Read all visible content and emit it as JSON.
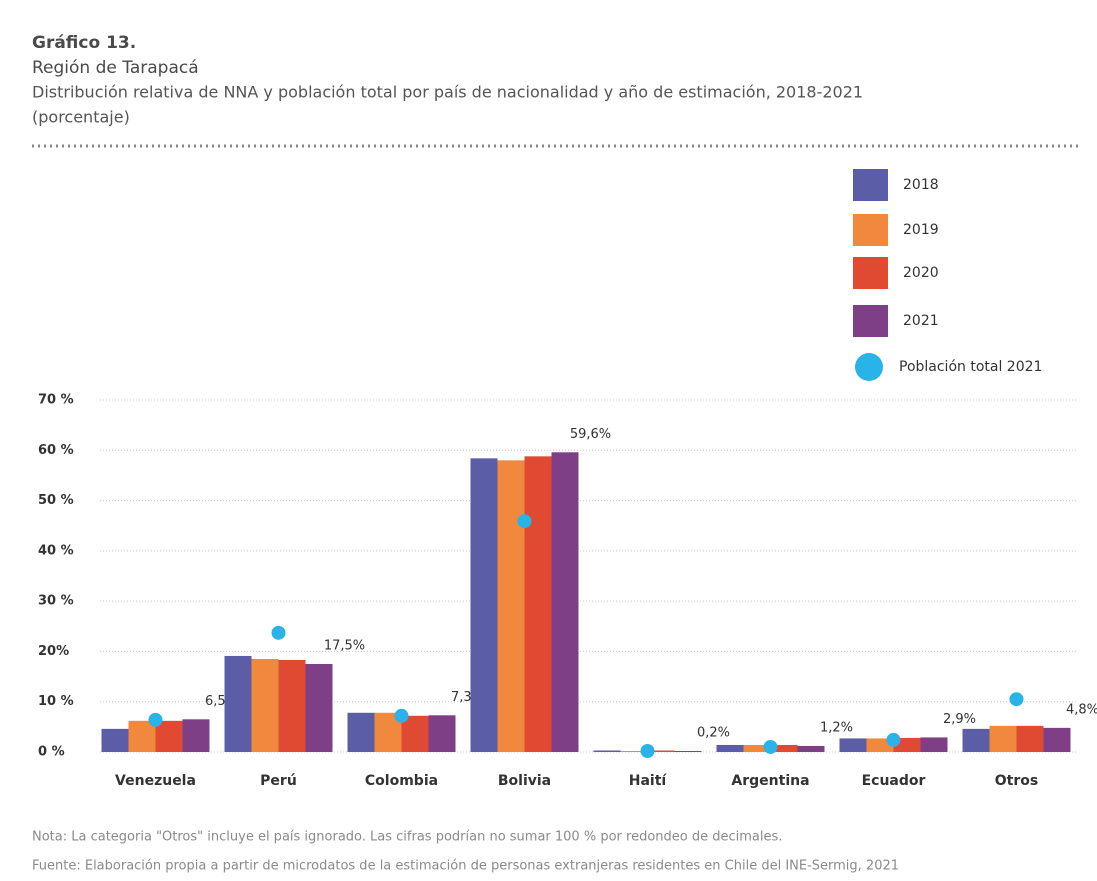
{
  "chart_data": {
    "type": "bar",
    "title": "Gráfico 13.",
    "region": "Región de Tarapacá",
    "subtitle": "Distribución relativa de NNA y población total por país de nacionalidad y año de estimación, 2018-2021",
    "unit_note": "(porcentaje)",
    "categories": [
      "Venezuela",
      "Perú",
      "Colombia",
      "Bolivia",
      "Haití",
      "Argentina",
      "Ecuador",
      "Otros"
    ],
    "series": [
      {
        "name": "2018",
        "color": "#5b5ea6",
        "values": [
          4.6,
          19.1,
          7.8,
          58.4,
          0.3,
          1.4,
          2.7,
          4.6
        ]
      },
      {
        "name": "2019",
        "color": "#f0883e",
        "values": [
          6.2,
          18.5,
          7.8,
          58.0,
          0.2,
          1.4,
          2.7,
          5.2
        ]
      },
      {
        "name": "2020",
        "color": "#e04a33",
        "values": [
          6.2,
          18.3,
          7.2,
          58.8,
          0.3,
          1.4,
          2.8,
          5.2
        ]
      },
      {
        "name": "2021",
        "color": "#7e3f86",
        "values": [
          6.5,
          17.5,
          7.3,
          59.6,
          0.2,
          1.2,
          2.9,
          4.8
        ],
        "value_labels": [
          "6,5%",
          "17,5%",
          "7,3%",
          "59,6%",
          "0,2%",
          "1,2%",
          "2,9%",
          "4,8%"
        ]
      },
      {
        "name": "Población total 2021",
        "color": "#29b3e8",
        "marker": "circle",
        "values": [
          6.4,
          23.7,
          7.2,
          45.9,
          0.2,
          1.0,
          2.4,
          10.5
        ]
      }
    ],
    "ylim": [
      0,
      70
    ],
    "yticks": [
      {
        "value": 0,
        "label": "0 %"
      },
      {
        "value": 10,
        "label": "10 %"
      },
      {
        "value": 20,
        "label": "20%"
      },
      {
        "value": 30,
        "label": "30 %"
      },
      {
        "value": 40,
        "label": "40 %"
      },
      {
        "value": 50,
        "label": "50 %"
      },
      {
        "value": 60,
        "label": "60 %"
      },
      {
        "value": 70,
        "label": "70 %"
      }
    ],
    "grid": true,
    "legend": "top-right",
    "notes": [
      "Nota: La categoria \"Otros\" incluye el país ignorado. Las cifras podrían no sumar 100 % por redondeo de decimales.",
      "Fuente: Elaboración propia a partir de microdatos de la estimación de personas extranjeras residentes en Chile del INE-Sermig, 2021"
    ]
  }
}
